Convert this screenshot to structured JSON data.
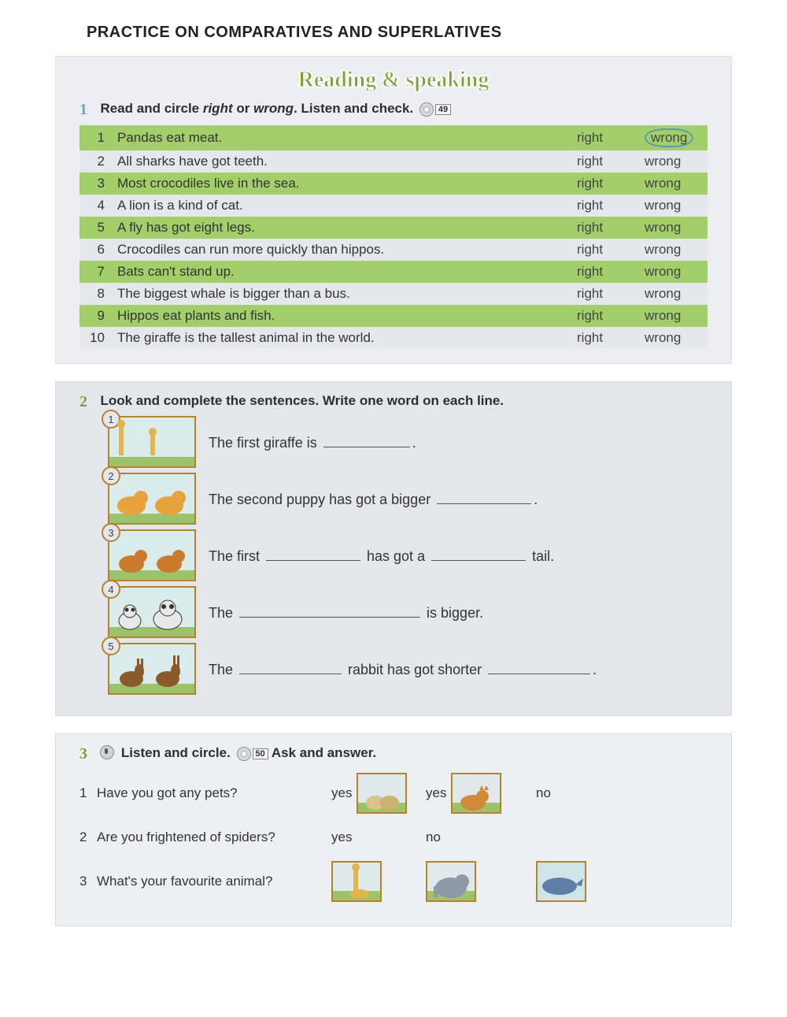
{
  "page_title": "PRACTICE ON COMPARATIVES AND SUPERLATIVES",
  "header_banner": "Reading & speaking",
  "ex1": {
    "number": "1",
    "instruction": "Read and circle right or wrong. Listen and check.",
    "track": "49",
    "right_label": "right",
    "wrong_label": "wrong",
    "items": [
      {
        "n": "1",
        "text": "Pandas eat meat.",
        "circled": "wrong"
      },
      {
        "n": "2",
        "text": "All sharks have got teeth.",
        "circled": ""
      },
      {
        "n": "3",
        "text": "Most crocodiles live in the sea.",
        "circled": ""
      },
      {
        "n": "4",
        "text": "A lion is a kind of cat.",
        "circled": ""
      },
      {
        "n": "5",
        "text": "A fly has got eight legs.",
        "circled": ""
      },
      {
        "n": "6",
        "text": "Crocodiles can run more quickly than hippos.",
        "circled": ""
      },
      {
        "n": "7",
        "text": "Bats can't stand up.",
        "circled": ""
      },
      {
        "n": "8",
        "text": "The biggest whale is bigger than a bus.",
        "circled": ""
      },
      {
        "n": "9",
        "text": "Hippos eat plants and fish.",
        "circled": ""
      },
      {
        "n": "10",
        "text": "The giraffe is the tallest animal in the world.",
        "circled": ""
      }
    ]
  },
  "ex2": {
    "number": "2",
    "instruction": "Look and complete the sentences. Write one word on each line.",
    "items": [
      {
        "n": "1",
        "animals": "giraffes",
        "parts": [
          "The first giraffe is ",
          "."
        ],
        "blanks": [
          110
        ]
      },
      {
        "n": "2",
        "animals": "puppies",
        "parts": [
          "The second puppy has got a bigger ",
          "."
        ],
        "blanks": [
          120
        ]
      },
      {
        "n": "3",
        "animals": "cats",
        "parts": [
          "The first ",
          " has got a ",
          " tail."
        ],
        "blanks": [
          120,
          120
        ]
      },
      {
        "n": "4",
        "animals": "pandas",
        "parts": [
          "The ",
          " is bigger."
        ],
        "blanks": [
          230
        ]
      },
      {
        "n": "5",
        "animals": "rabbits",
        "parts": [
          "The ",
          " rabbit has got shorter ",
          "."
        ],
        "blanks": [
          130,
          130
        ]
      }
    ]
  },
  "ex3": {
    "number": "3",
    "instruction": "Listen and circle.",
    "track": "50",
    "suffix": "Ask and answer.",
    "questions": [
      {
        "n": "1",
        "text": "Have you got any pets?",
        "options": [
          {
            "label": "yes",
            "img": "hamsters"
          },
          {
            "label": "yes",
            "img": "cat"
          },
          {
            "label": "no",
            "img": ""
          }
        ]
      },
      {
        "n": "2",
        "text": "Are you frightened of spiders?",
        "options": [
          {
            "label": "yes",
            "img": ""
          },
          {
            "label": "no",
            "img": ""
          },
          {
            "label": "",
            "img": ""
          }
        ]
      },
      {
        "n": "3",
        "text": "What's your favourite animal?",
        "options": [
          {
            "label": "",
            "img": "giraffe"
          },
          {
            "label": "",
            "img": "elephant"
          },
          {
            "label": "",
            "img": "whale"
          }
        ]
      }
    ]
  },
  "colors": {
    "odd_row": "#a3cf6b",
    "even_row": "#e4e8ec",
    "circle": "#5f97b5",
    "accent_brown": "#b5832c",
    "green_text": "#7aa235"
  }
}
